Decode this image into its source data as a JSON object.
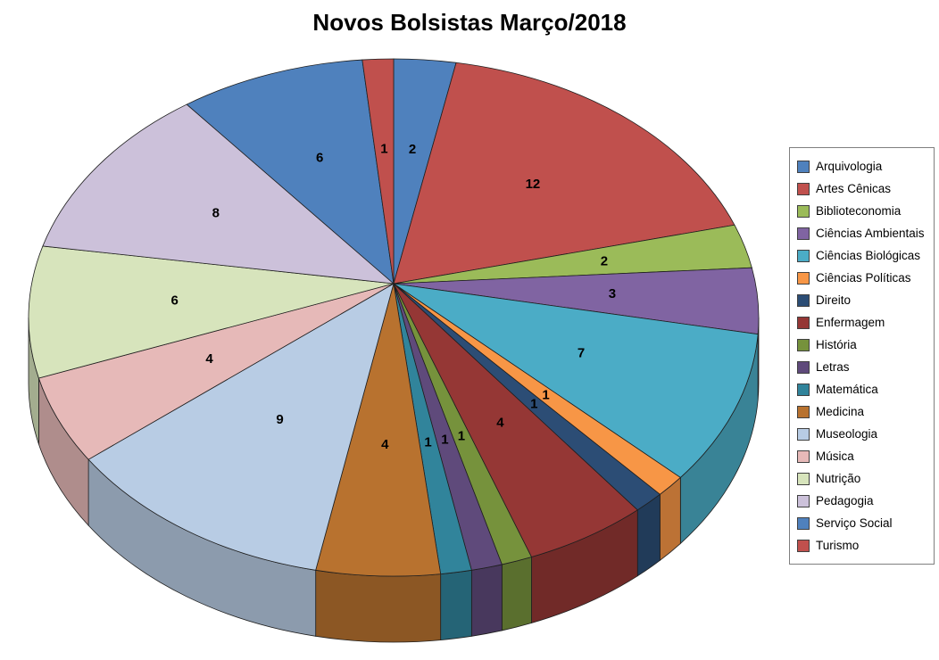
{
  "title": "Novos Bolsistas Março/2018",
  "chart_data": {
    "type": "pie",
    "style": "3d",
    "title": "Novos Bolsistas Março/2018",
    "total": 73,
    "start_angle_deg": 0,
    "direction": "clockwise",
    "legend_position": "right",
    "data_labels": "value",
    "background_color": "#FFFFFF",
    "data_label_color": "#000000",
    "categories": [
      "Arquivologia",
      "Artes Cênicas",
      "Biblioteconomia",
      "Ciências Ambientais",
      "Ciências Biológicas",
      "Ciências Políticas",
      "Direito",
      "Enfermagem",
      "História",
      "Letras",
      "Matemática",
      "Medicina",
      "Museologia",
      "Música",
      "Nutrição",
      "Pedagogia",
      "Serviço Social",
      "Turismo"
    ],
    "values": [
      2,
      12,
      2,
      3,
      7,
      1,
      1,
      4,
      1,
      1,
      1,
      4,
      9,
      4,
      6,
      8,
      6,
      1
    ],
    "colors": [
      "#4F81BD",
      "#C0504D",
      "#9BBB59",
      "#8064A2",
      "#4BACC6",
      "#F79646",
      "#2C4D75",
      "#953735",
      "#76923C",
      "#5F4A7B",
      "#31849B",
      "#B8722F",
      "#B8CCE4",
      "#E6B9B8",
      "#D7E4BC",
      "#CCC1DA",
      "#4F81BD",
      "#C0504D"
    ]
  }
}
